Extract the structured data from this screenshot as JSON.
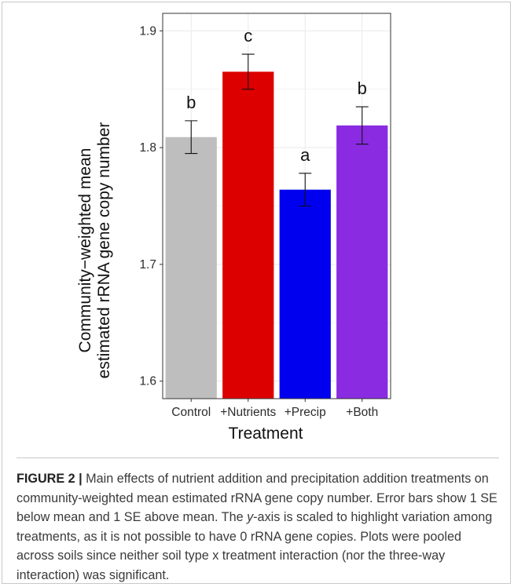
{
  "chart_data": {
    "type": "bar",
    "categories": [
      "Control",
      "+Nutrients",
      "+Precip",
      "+Both"
    ],
    "values": [
      1.809,
      1.865,
      1.764,
      1.819
    ],
    "errors": [
      0.014,
      0.015,
      0.014,
      0.016
    ],
    "colors": [
      "#bebebe",
      "#dd0000",
      "#0000ee",
      "#8a2be2"
    ],
    "significance_letters": [
      "b",
      "c",
      "a",
      "b"
    ],
    "xlabel": "Treatment",
    "ylabel_line1": "Community−weighted mean",
    "ylabel_line2": "estimated rRNA gene copy number",
    "ylim": [
      1.585,
      1.915
    ],
    "yticks": [
      1.6,
      1.7,
      1.8,
      1.9
    ],
    "ytick_labels": [
      "1.6",
      "1.7",
      "1.8",
      "1.9"
    ],
    "grid": true
  },
  "caption": {
    "label": "FIGURE 2 |",
    "text_before_axis": " Main effects of nutrient addition and precipitation addition treatments on community-weighted mean estimated rRNA gene copy number. Error bars show 1 SE below mean and 1 SE above mean. The ",
    "axis_letter": "y",
    "text_after_axis": "-axis is scaled to highlight variation among treatments, as it is not possible to have 0 rRNA gene copies. Plots were pooled across soils since neither soil type x treatment interaction (nor the three-way interaction) was significant."
  }
}
